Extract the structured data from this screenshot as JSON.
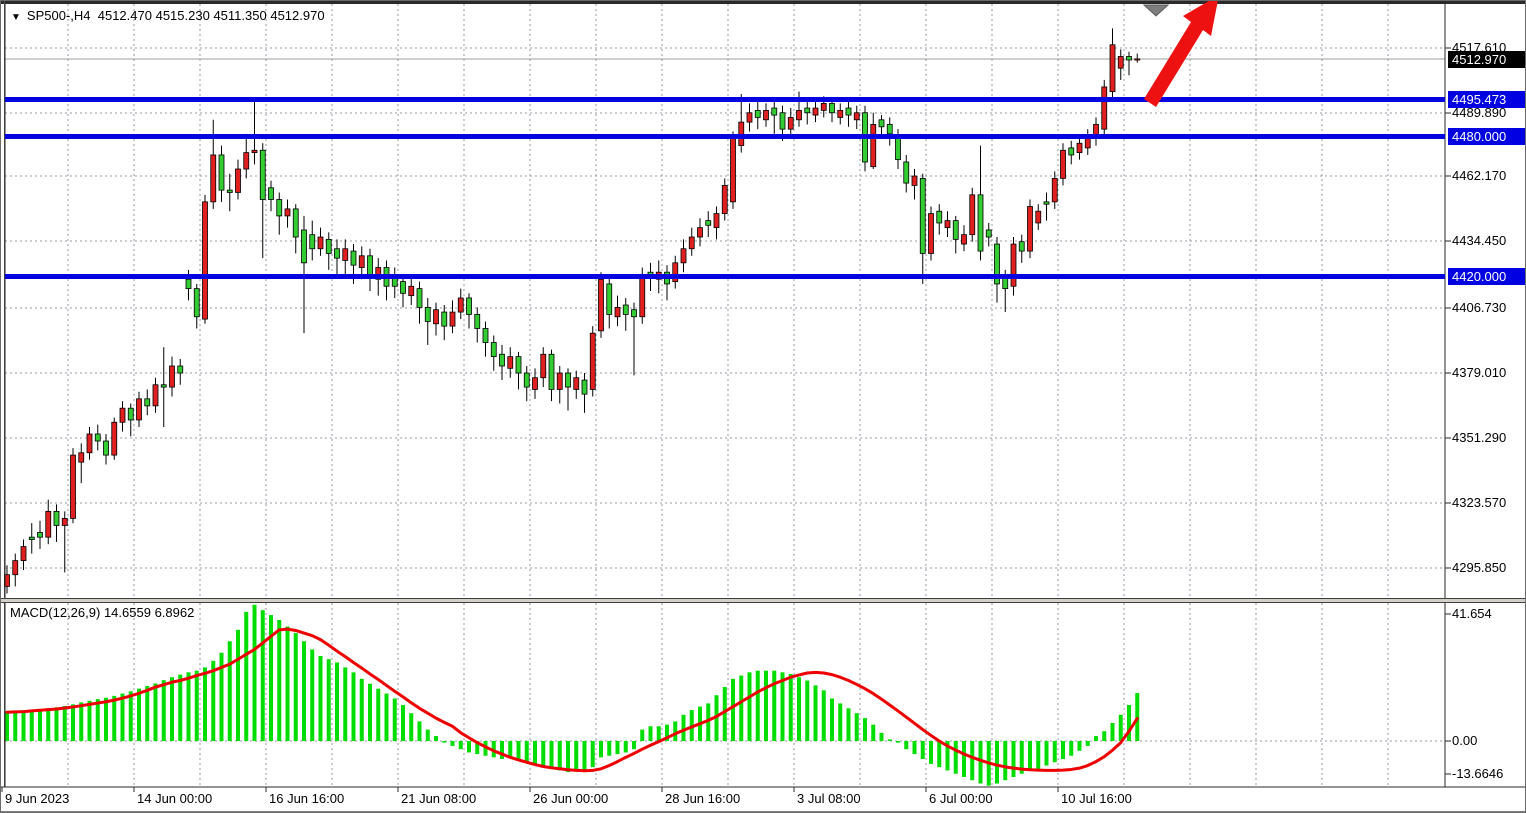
{
  "header": {
    "triangle": "▼",
    "symbol_period": "SP500-,H4",
    "open": "4512.470",
    "high": "4515.230",
    "low": "4511.350",
    "close": "4512.970"
  },
  "macd_header": {
    "name": "MACD(12,26,9)",
    "macd_value": "14.6559",
    "signal_value": "6.8962"
  },
  "price_axis": {
    "ticks": [
      {
        "label": "4517.610",
        "y": 47
      },
      {
        "label": "4489.890",
        "y": 112
      },
      {
        "label": "4462.170",
        "y": 175
      },
      {
        "label": "4434.450",
        "y": 240
      },
      {
        "label": "4406.730",
        "y": 307
      },
      {
        "label": "4379.010",
        "y": 372
      },
      {
        "label": "4351.290",
        "y": 437
      },
      {
        "label": "4323.570",
        "y": 502
      },
      {
        "label": "4295.850",
        "y": 567
      }
    ],
    "last_price": {
      "label": "4512.970",
      "y": 58
    }
  },
  "macd_axis": {
    "ticks": [
      {
        "label": "41.654",
        "y": 613
      },
      {
        "label": "0.00",
        "y": 740
      },
      {
        "label": "-13.6646",
        "y": 773
      }
    ]
  },
  "levels": [
    {
      "label": "4495.473",
      "price": 4495.473
    },
    {
      "label": "4480.000",
      "price": 4480.0
    },
    {
      "label": "4420.000",
      "price": 4420.0
    }
  ],
  "time_axis": {
    "labels": [
      {
        "label": "9 Jun 2023",
        "x": 1
      },
      {
        "label": "14 Jun 00:00",
        "x": 133
      },
      {
        "label": "16 Jun 16:00",
        "x": 265
      },
      {
        "label": "21 Jun 08:00",
        "x": 397
      },
      {
        "label": "26 Jun 00:00",
        "x": 529
      },
      {
        "label": "28 Jun 16:00",
        "x": 661
      },
      {
        "label": "3 Jul 08:00",
        "x": 793
      },
      {
        "label": "6 Jul 00:00",
        "x": 925
      },
      {
        "label": "10 Jul 16:00",
        "x": 1057
      }
    ]
  },
  "colors": {
    "bull_body": "#e02020",
    "bear_body": "#33cc33",
    "body_border": "#000000",
    "wick": "#000000",
    "macd_hist": "#00dd00",
    "macd_signal": "#ee0000",
    "level_line": "#0000e0",
    "level_box": "#0000e0",
    "last_price_box": "#000000",
    "last_price_line": "#9c9c9c",
    "grid": "#959aa6",
    "arrow": "#ee1111",
    "marker": "#7e7e7e",
    "axis_line": "#2a2a2a"
  },
  "chart_data": {
    "type": "candlestick",
    "symbol": "SP500-",
    "timeframe": "H4",
    "note": "Bullish candles are red, bearish candles are green in this chart. Values as [open,high,low,close].",
    "price_ylim": [
      4281.5,
      4536.5
    ],
    "yticks": [
      4517.61,
      4489.89,
      4462.17,
      4434.45,
      4406.73,
      4379.01,
      4351.29,
      4323.57,
      4295.85
    ],
    "horizontal_levels": [
      4495.473,
      4480.0,
      4420.0
    ],
    "last_quote": {
      "open": 4512.47,
      "high": 4515.23,
      "low": 4511.35,
      "close": 4512.97
    },
    "candles": [
      [
        4288,
        4297,
        4285,
        4293
      ],
      [
        4293,
        4302,
        4288,
        4299
      ],
      [
        4299,
        4308,
        4295,
        4305
      ],
      [
        4309,
        4315,
        4302,
        4308
      ],
      [
        4311,
        4316,
        4304,
        4309
      ],
      [
        4309,
        4325,
        4306,
        4320
      ],
      [
        4320,
        4323,
        4307,
        4314
      ],
      [
        4314,
        4320,
        4294,
        4317
      ],
      [
        4317,
        4347,
        4315,
        4344
      ],
      [
        4341,
        4349,
        4332,
        4345
      ],
      [
        4345,
        4356,
        4342,
        4353
      ],
      [
        4353,
        4357,
        4346,
        4350
      ],
      [
        4350,
        4353,
        4340,
        4344
      ],
      [
        4344,
        4360,
        4342,
        4358
      ],
      [
        4358,
        4367,
        4354,
        4364
      ],
      [
        4364,
        4366,
        4352,
        4359
      ],
      [
        4359,
        4371,
        4356,
        4368
      ],
      [
        4368,
        4372,
        4361,
        4365
      ],
      [
        4365,
        4377,
        4362,
        4374
      ],
      [
        4374,
        4390,
        4356,
        4373
      ],
      [
        4373,
        4386,
        4369,
        4382
      ],
      [
        4382,
        4385,
        4374,
        4379
      ],
      [
        4419,
        4423,
        4410,
        4415
      ],
      [
        4415,
        4417,
        4398,
        4403
      ],
      [
        4402,
        4455,
        4400,
        4452
      ],
      [
        4452,
        4487,
        4449,
        4472
      ],
      [
        4472,
        4476,
        4452,
        4457
      ],
      [
        4457,
        4464,
        4448,
        4456
      ],
      [
        4456,
        4470,
        4453,
        4466
      ],
      [
        4466,
        4481,
        4462,
        4473
      ],
      [
        4473,
        4496,
        4468,
        4474
      ],
      [
        4474,
        4477,
        4428,
        4453
      ],
      [
        4458,
        4461,
        4448,
        4453
      ],
      [
        4453,
        4456,
        4438,
        4446
      ],
      [
        4446,
        4453,
        4441,
        4449
      ],
      [
        4449,
        4451,
        4430,
        4437
      ],
      [
        4440,
        4446,
        4396,
        4426
      ],
      [
        4438,
        4444,
        4427,
        4432
      ],
      [
        4432,
        4441,
        4429,
        4437
      ],
      [
        4436,
        4439,
        4423,
        4430
      ],
      [
        4432,
        4436,
        4421,
        4428
      ],
      [
        4427,
        4436,
        4420,
        4432
      ],
      [
        4431,
        4434,
        4417,
        4425
      ],
      [
        4424,
        4433,
        4419,
        4429
      ],
      [
        4429,
        4432,
        4414,
        4420
      ],
      [
        4419,
        4428,
        4412,
        4424
      ],
      [
        4424,
        4427,
        4410,
        4416
      ],
      [
        4421,
        4424,
        4411,
        4416
      ],
      [
        4418,
        4421,
        4407,
        4413
      ],
      [
        4412,
        4420,
        4408,
        4416
      ],
      [
        4415,
        4418,
        4400,
        4407
      ],
      [
        4407,
        4411,
        4391,
        4401
      ],
      [
        4400,
        4409,
        4395,
        4406
      ],
      [
        4405,
        4408,
        4393,
        4399
      ],
      [
        4399,
        4410,
        4396,
        4405
      ],
      [
        4405,
        4415,
        4402,
        4411
      ],
      [
        4411,
        4413,
        4398,
        4404
      ],
      [
        4404,
        4407,
        4392,
        4398
      ],
      [
        4398,
        4401,
        4386,
        4392
      ],
      [
        4392,
        4395,
        4380,
        4386
      ],
      [
        4387,
        4391,
        4376,
        4382
      ],
      [
        4381,
        4390,
        4377,
        4386
      ],
      [
        4386,
        4388,
        4372,
        4379
      ],
      [
        4379,
        4382,
        4367,
        4373
      ],
      [
        4372,
        4381,
        4368,
        4377
      ],
      [
        4377,
        4390,
        4373,
        4387
      ],
      [
        4387,
        4389,
        4367,
        4372
      ],
      [
        4372,
        4382,
        4366,
        4379
      ],
      [
        4379,
        4381,
        4363,
        4373
      ],
      [
        4372,
        4380,
        4368,
        4377
      ],
      [
        4376,
        4379,
        4362,
        4370
      ],
      [
        4372,
        4399,
        4369,
        4396
      ],
      [
        4397,
        4422,
        4394,
        4419
      ],
      [
        4417,
        4420,
        4398,
        4404
      ],
      [
        4403,
        4412,
        4399,
        4407
      ],
      [
        4408,
        4411,
        4397,
        4404
      ],
      [
        4406,
        4409,
        4378,
        4403
      ],
      [
        4403,
        4424,
        4400,
        4421
      ],
      [
        4422,
        4426,
        4414,
        4420
      ],
      [
        4419,
        4427,
        4413,
        4422
      ],
      [
        4422,
        4425,
        4410,
        4417
      ],
      [
        4418,
        4429,
        4415,
        4426
      ],
      [
        4426,
        4436,
        4422,
        4432
      ],
      [
        4432,
        4441,
        4429,
        4437
      ],
      [
        4437,
        4445,
        4433,
        4441
      ],
      [
        4444,
        4448,
        4437,
        4442
      ],
      [
        4441,
        4450,
        4436,
        4447
      ],
      [
        4447,
        4462,
        4444,
        4459
      ],
      [
        4452,
        4482,
        4449,
        4479
      ],
      [
        4476,
        4498,
        4473,
        4486
      ],
      [
        4486,
        4494,
        4482,
        4490
      ],
      [
        4491,
        4495,
        4483,
        4488
      ],
      [
        4487,
        4494,
        4484,
        4491
      ],
      [
        4492,
        4496,
        4481,
        4489
      ],
      [
        4490,
        4493,
        4478,
        4483
      ],
      [
        4483,
        4492,
        4479,
        4488
      ],
      [
        4487,
        4499,
        4484,
        4491
      ],
      [
        4492,
        4495,
        4485,
        4490
      ],
      [
        4489,
        4496,
        4486,
        4492
      ],
      [
        4491,
        4497,
        4488,
        4494
      ],
      [
        4494,
        4496,
        4486,
        4490
      ],
      [
        4488,
        4494,
        4485,
        4491
      ],
      [
        4492,
        4495,
        4484,
        4489
      ],
      [
        4487,
        4493,
        4483,
        4490
      ],
      [
        4490,
        4493,
        4465,
        4469
      ],
      [
        4467,
        4490,
        4466,
        4485
      ],
      [
        4487,
        4489,
        4479,
        4484
      ],
      [
        4485,
        4488,
        4476,
        4481
      ],
      [
        4480,
        4483,
        4466,
        4470
      ],
      [
        4469,
        4472,
        4456,
        4460
      ],
      [
        4459,
        4466,
        4453,
        4463
      ],
      [
        4462,
        4464,
        4417,
        4430
      ],
      [
        4430,
        4450,
        4427,
        4447
      ],
      [
        4448,
        4451,
        4438,
        4443
      ],
      [
        4441,
        4448,
        4437,
        4444
      ],
      [
        4444,
        4446,
        4430,
        4436
      ],
      [
        4434,
        4442,
        4431,
        4438
      ],
      [
        4438,
        4458,
        4435,
        4455
      ],
      [
        4455,
        4476,
        4427,
        4431
      ],
      [
        4440,
        4443,
        4433,
        4437
      ],
      [
        4434,
        4437,
        4409,
        4417
      ],
      [
        4420,
        4423,
        4405,
        4415
      ],
      [
        4416,
        4437,
        4412,
        4434
      ],
      [
        4435,
        4438,
        4426,
        4431
      ],
      [
        4431,
        4453,
        4428,
        4450
      ],
      [
        4443,
        4451,
        4440,
        4448
      ],
      [
        4452,
        4456,
        4444,
        4451
      ],
      [
        4452,
        4465,
        4449,
        4462
      ],
      [
        4462,
        4477,
        4459,
        4474
      ],
      [
        4475,
        4478,
        4468,
        4472
      ],
      [
        4473,
        4480,
        4470,
        4477
      ],
      [
        4475,
        4483,
        4472,
        4480
      ],
      [
        4479,
        4488,
        4476,
        4485
      ],
      [
        4483,
        4504,
        4480,
        4501
      ],
      [
        4499,
        4526,
        4496,
        4519
      ],
      [
        4509,
        4517,
        4504,
        4514
      ],
      [
        4514,
        4516,
        4506,
        4512.5
      ],
      [
        4512.47,
        4515.23,
        4511.35,
        4512.97
      ]
    ],
    "macd": {
      "params": "12,26,9",
      "ylim": [
        -13.6646,
        41.654
      ],
      "current_macd": 14.6559,
      "current_signal": 6.8962,
      "histogram": [
        9.0,
        9.2,
        9.4,
        9.5,
        9.7,
        10.0,
        10.3,
        10.7,
        11.2,
        11.8,
        12.3,
        12.8,
        13.2,
        13.8,
        14.5,
        15.2,
        16.0,
        16.8,
        17.6,
        18.6,
        19.5,
        20.3,
        21.0,
        21.5,
        22.5,
        24.5,
        27.0,
        30.5,
        34.0,
        39.5,
        41.654,
        40.0,
        38.5,
        37.0,
        35.0,
        33.0,
        30.5,
        28.0,
        26.0,
        25.0,
        24.0,
        22.5,
        21.0,
        19.0,
        17.5,
        16.0,
        14.5,
        13.0,
        11.0,
        8.5,
        6.0,
        3.5,
        1.5,
        -0.5,
        -1.5,
        -2.5,
        -3.5,
        -4.0,
        -4.5,
        -5.0,
        -5.5,
        -5.0,
        -6.0,
        -6.5,
        -7.0,
        -7.5,
        -8.5,
        -9.0,
        -9.5,
        -9.0,
        -9.5,
        -8.0,
        -5.0,
        -4.5,
        -4.0,
        -3.5,
        -2.5,
        3.5,
        4.5,
        4.5,
        5.0,
        6.0,
        8.0,
        9.5,
        10.5,
        11.5,
        14.0,
        16.5,
        19.0,
        20.0,
        21.0,
        21.5,
        21.5,
        21.5,
        21.0,
        20.5,
        19.5,
        18.5,
        17.0,
        15.5,
        13.0,
        11.5,
        10.0,
        8.5,
        7.0,
        5.0,
        2.5,
        0.5,
        -0.5,
        -2.5,
        -4.0,
        -5.5,
        -7.0,
        -8.0,
        -9.0,
        -10.0,
        -11.0,
        -12.0,
        -13.0,
        -13.6646,
        -13.0,
        -12.0,
        -11.0,
        -10.0,
        -9.0,
        -8.5,
        -7.5,
        -6.5,
        -5.5,
        -4.5,
        -3.0,
        -1.5,
        1.5,
        3.0,
        5.5,
        8.0,
        11.0,
        14.6559
      ],
      "signal": [
        8.8,
        8.9,
        9.0,
        9.2,
        9.4,
        9.6,
        9.8,
        10.1,
        10.4,
        10.8,
        11.2,
        11.6,
        12.0,
        12.5,
        13.1,
        13.8,
        14.6,
        15.5,
        16.5,
        17.2,
        18.0,
        18.5,
        19.2,
        20.0,
        20.7,
        21.5,
        22.5,
        23.5,
        25.0,
        26.5,
        28.0,
        30.0,
        32.0,
        34.0,
        34.2,
        33.8,
        33.0,
        32.2,
        31.0,
        29.3,
        27.5,
        25.8,
        24.0,
        22.3,
        20.5,
        18.8,
        17.0,
        15.2,
        13.5,
        11.7,
        10.0,
        8.5,
        7.0,
        5.7,
        4.5,
        2.5,
        1.0,
        -0.5,
        -1.8,
        -3.0,
        -4.0,
        -5.0,
        -5.8,
        -6.5,
        -7.2,
        -7.8,
        -8.2,
        -8.5,
        -8.8,
        -9.0,
        -9.1,
        -9.0,
        -8.5,
        -7.5,
        -6.3,
        -5.0,
        -3.8,
        -2.5,
        -1.3,
        -0.2,
        1.0,
        2.2,
        3.3,
        4.3,
        5.3,
        6.3,
        7.5,
        9.0,
        10.5,
        12.0,
        13.5,
        15.0,
        16.3,
        17.5,
        18.5,
        19.5,
        20.2,
        20.8,
        21.0,
        20.8,
        20.3,
        19.5,
        18.5,
        17.3,
        16.0,
        14.5,
        12.8,
        11.0,
        9.2,
        7.3,
        5.4,
        3.5,
        1.7,
        0.0,
        -1.5,
        -2.8,
        -4.0,
        -5.0,
        -5.9,
        -6.7,
        -7.4,
        -7.9,
        -8.3,
        -8.6,
        -8.8,
        -8.9,
        -9.0,
        -9.0,
        -8.9,
        -8.7,
        -8.3,
        -7.5,
        -6.3,
        -4.8,
        -2.8,
        -0.5,
        3.0,
        6.8962
      ]
    },
    "annotations": {
      "trend_arrow": "large red arrow pointing up-right, head clipped at top",
      "top_marker": "gray downward triangle at top near last bars"
    }
  }
}
